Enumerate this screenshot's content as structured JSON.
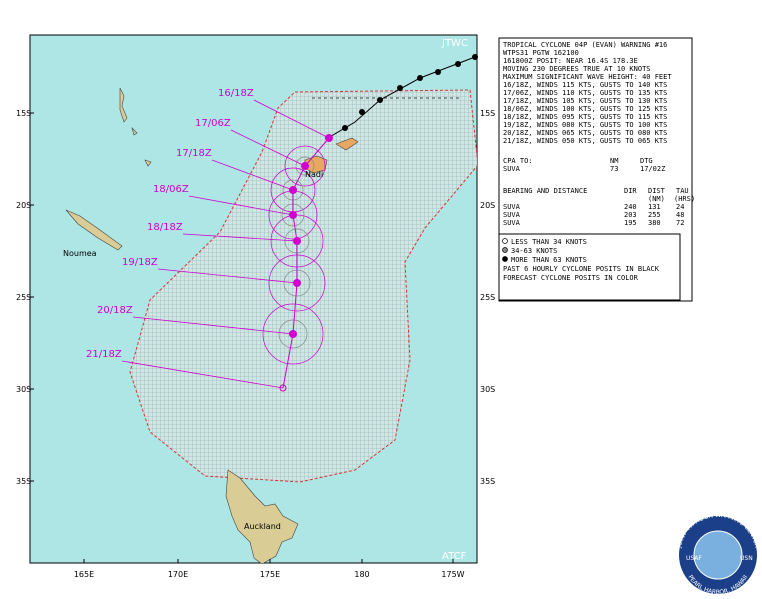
{
  "map": {
    "corner_labels": [
      "JTWC",
      "ATCF"
    ],
    "latitudes": [
      "15S",
      "20S",
      "25S",
      "30S",
      "35S"
    ],
    "longitudes": [
      "165E",
      "170E",
      "175E",
      "180",
      "175W"
    ],
    "places": [
      "Nadi",
      "Noumea",
      "Auckland"
    ],
    "forecast_times": [
      "16/18Z",
      "17/06Z",
      "17/18Z",
      "18/06Z",
      "18/18Z",
      "19/18Z",
      "20/18Z",
      "21/18Z"
    ]
  },
  "warning": {
    "header": [
      "TROPICAL CYCLONE 04P (EVAN) WARNING #16",
      "WTPS31 PGTW 162100",
      "161800Z POSIT: NEAR 16.4S 178.3E",
      "MOVING 230 DEGREES TRUE AT 10 KNOTS",
      "MAXIMUM SIGNIFICANT WAVE HEIGHT: 40 FEET"
    ],
    "intensities": [
      "16/18Z, WINDS 115 KTS, GUSTS TO 140 KTS",
      "17/06Z, WINDS 110 KTS, GUSTS TO 135 KTS",
      "17/18Z, WINDS 105 KTS, GUSTS TO 130 KTS",
      "18/06Z, WINDS 100 KTS, GUSTS TO 125 KTS",
      "18/18Z, WINDS 095 KTS, GUSTS TO 115 KTS",
      "19/18Z, WINDS 080 KTS, GUSTS TO 100 KTS",
      "20/18Z, WINDS 065 KTS, GUSTS TO 080 KTS",
      "21/18Z, WINDS 050 KTS, GUSTS TO 065 KTS"
    ],
    "cpa": {
      "header": [
        "CPA TO:",
        "NM",
        "DTG"
      ],
      "rows": [
        [
          "SUVA",
          "73",
          "17/02Z"
        ]
      ]
    },
    "bearing": {
      "header": [
        "BEARING AND DISTANCE",
        "DIR",
        "DIST",
        "TAU"
      ],
      "subheader": [
        "(NM)",
        "(HRS)"
      ],
      "rows": [
        [
          "SUVA",
          "240",
          "131",
          "24"
        ],
        [
          "SUVA",
          "203",
          "255",
          "48"
        ],
        [
          "SUVA",
          "195",
          "380",
          "72"
        ]
      ]
    }
  },
  "legend": {
    "items": [
      "LESS THAN 34 KNOTS",
      "34-63 KNOTS",
      "MORE THAN 63 KNOTS"
    ],
    "notes": [
      "PAST 6 HOURLY CYCLONE POSITS IN BLACK",
      "FORECAST CYCLONE POSITS IN COLOR"
    ]
  },
  "logo": {
    "top": "JOINT TYPHOON WARNING CENTER",
    "bottom": "PEARL HARBOR, HAWAII",
    "left": "USAF",
    "right": "USN"
  }
}
